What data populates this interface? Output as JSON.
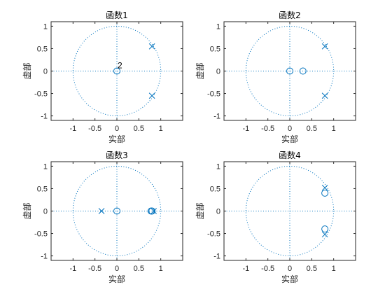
{
  "chart_data": [
    {
      "type": "scatter",
      "title": "函数1",
      "xlabel": "实部",
      "ylabel": "虚部",
      "xlim": [
        -1.5,
        1.5
      ],
      "ylim": [
        -1.1,
        1.1
      ],
      "xticks": [
        -1,
        -0.5,
        0,
        0.5,
        1
      ],
      "yticks": [
        -1,
        -0.5,
        0,
        0.5,
        1
      ],
      "unit_circle": true,
      "color": "#0072BD",
      "zeros": [
        {
          "x": 0,
          "y": 0,
          "multiplicity": "2"
        }
      ],
      "poles": [
        {
          "x": 0.8,
          "y": 0.55
        },
        {
          "x": 0.8,
          "y": -0.55
        }
      ]
    },
    {
      "type": "scatter",
      "title": "函数2",
      "xlabel": "实部",
      "ylabel": "虚部",
      "xlim": [
        -1.5,
        1.5
      ],
      "ylim": [
        -1.1,
        1.1
      ],
      "xticks": [
        -1,
        -0.5,
        0,
        0.5,
        1
      ],
      "yticks": [
        -1,
        -0.5,
        0,
        0.5,
        1
      ],
      "unit_circle": true,
      "color": "#0072BD",
      "zeros": [
        {
          "x": 0,
          "y": 0
        },
        {
          "x": 0.3,
          "y": 0
        }
      ],
      "poles": [
        {
          "x": 0.8,
          "y": 0.55
        },
        {
          "x": 0.8,
          "y": -0.55
        }
      ]
    },
    {
      "type": "scatter",
      "title": "函数3",
      "xlabel": "实部",
      "ylabel": "虚部",
      "xlim": [
        -1.5,
        1.5
      ],
      "ylim": [
        -1.1,
        1.1
      ],
      "xticks": [
        -1,
        -0.5,
        0,
        0.5,
        1
      ],
      "yticks": [
        -1,
        -0.5,
        0,
        0.5,
        1
      ],
      "unit_circle": true,
      "color": "#0072BD",
      "zeros": [
        {
          "x": 0,
          "y": 0
        },
        {
          "x": 0.78,
          "y": 0
        },
        {
          "x": 0.8,
          "y": 0
        }
      ],
      "poles": [
        {
          "x": -0.35,
          "y": 0
        },
        {
          "x": 0.84,
          "y": 0
        }
      ]
    },
    {
      "type": "scatter",
      "title": "函数4",
      "xlabel": "实部",
      "ylabel": "虚部",
      "xlim": [
        -1.5,
        1.5
      ],
      "ylim": [
        -1.1,
        1.1
      ],
      "xticks": [
        -1,
        -0.5,
        0,
        0.5,
        1
      ],
      "yticks": [
        -1,
        -0.5,
        0,
        0.5,
        1
      ],
      "unit_circle": true,
      "color": "#0072BD",
      "zeros": [
        {
          "x": 0.8,
          "y": 0.4
        },
        {
          "x": 0.8,
          "y": -0.4
        }
      ],
      "poles": [
        {
          "x": 0.8,
          "y": 0.52
        },
        {
          "x": 0.8,
          "y": -0.52
        }
      ]
    }
  ]
}
